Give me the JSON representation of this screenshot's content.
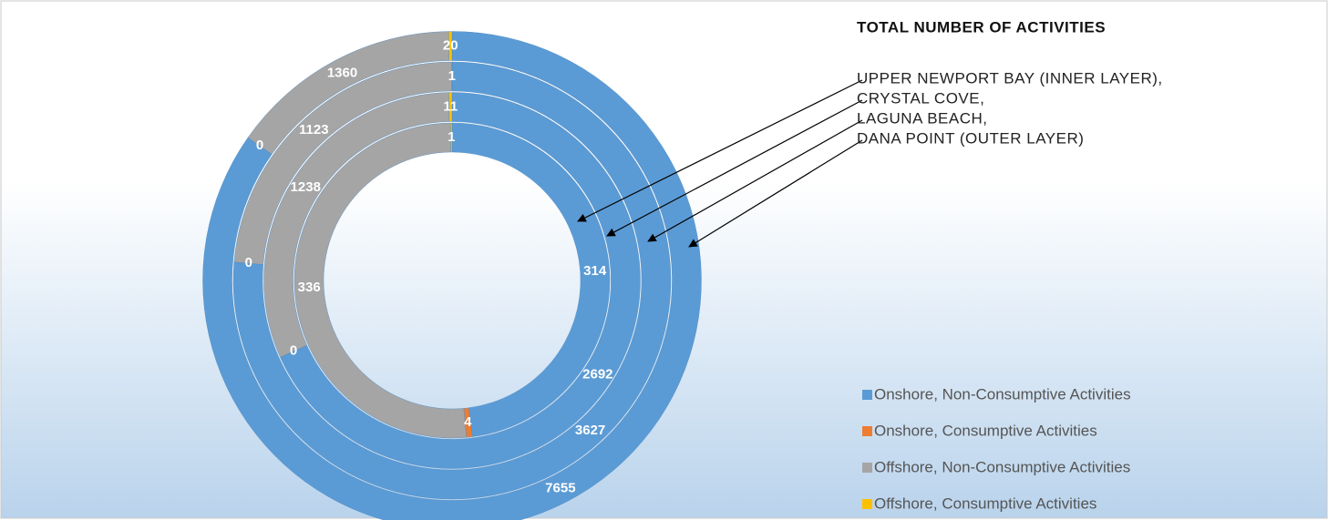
{
  "chart_data": {
    "type": "donut",
    "title": "TOTAL NUMBER OF ACTIVITIES",
    "rings": [
      "UPPER NEWPORT BAY (INNER LAYER),",
      "CRYSTAL COVE,",
      "LAGUNA BEACH,",
      "DANA POINT (OUTER LAYER)"
    ],
    "series": [
      {
        "name": "Onshore, Non-Consumptive Activities",
        "color": "#5b9bd5",
        "values": [
          314,
          2692,
          3627,
          7655
        ]
      },
      {
        "name": "Onshore, Consumptive Activities",
        "color": "#ed7d31",
        "values": [
          4,
          0,
          0,
          0
        ]
      },
      {
        "name": "Offshore, Non-Consumptive Activities",
        "color": "#a5a5a5",
        "values": [
          336,
          1238,
          1123,
          1360
        ]
      },
      {
        "name": "Offshore, Consumptive Activities",
        "color": "#ffc000",
        "values": [
          1,
          11,
          1,
          20
        ]
      }
    ],
    "legend": "bottom-right"
  }
}
